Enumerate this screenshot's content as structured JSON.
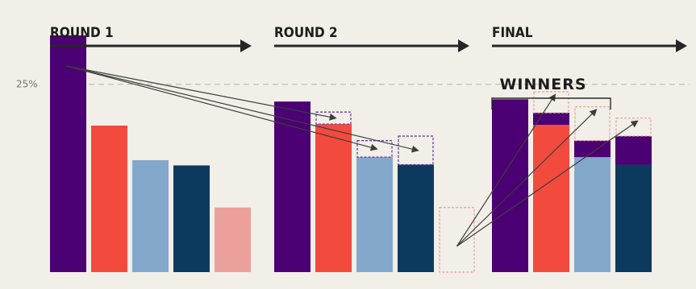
{
  "chart_data": {
    "type": "bar",
    "title": "",
    "stages": [
      {
        "label": "ROUND 1",
        "bars": [
          {
            "color_key": "purple",
            "value": 31.5
          },
          {
            "color_key": "red",
            "value": 19.5
          },
          {
            "color_key": "lightblue",
            "value": 14.9
          },
          {
            "color_key": "navy",
            "value": 14.2
          },
          {
            "color_key": "pink",
            "value": 8.6
          }
        ]
      },
      {
        "label": "ROUND 2",
        "bars": [
          {
            "color_key": "purple",
            "value": 22.7,
            "added": 0
          },
          {
            "color_key": "red",
            "value": 19.7,
            "added": 1.6
          },
          {
            "color_key": "lightblue",
            "value": 15.3,
            "added": 2.2
          },
          {
            "color_key": "navy",
            "value": 14.3,
            "added": 3.8
          },
          {
            "color_key": "pink",
            "value": 0,
            "eliminated_value": 8.6
          }
        ]
      },
      {
        "label": "FINAL",
        "bars": [
          {
            "color_key": "purple",
            "value": 23.0
          },
          {
            "color_key": "red",
            "value": 19.6,
            "added": 1.6,
            "slot": 24.0
          },
          {
            "color_key": "lightblue",
            "value": 15.3,
            "added": 2.2,
            "slot": 22.0
          },
          {
            "color_key": "navy",
            "value": 14.3,
            "added": 3.8,
            "slot": 20.5
          }
        ]
      }
    ],
    "reference_line": {
      "value": 25,
      "label": "25%"
    },
    "highlight_label": "WINNERS",
    "highlight_bars": [
      0,
      1,
      2
    ],
    "transfers": [
      {
        "from": [
          0,
          0
        ],
        "to": [
          1,
          1
        ]
      },
      {
        "from": [
          0,
          0
        ],
        "to": [
          1,
          2
        ]
      },
      {
        "from": [
          0,
          0
        ],
        "to": [
          1,
          3
        ]
      },
      {
        "from": [
          1,
          4
        ],
        "to": [
          2,
          1
        ]
      },
      {
        "from": [
          1,
          4
        ],
        "to": [
          2,
          2
        ]
      },
      {
        "from": [
          1,
          4
        ],
        "to": [
          2,
          3
        ]
      }
    ],
    "colors": {
      "purple": "#4b0073",
      "red": "#f24b3e",
      "lightblue": "#84a8cc",
      "navy": "#0c3a5e",
      "pink": "#eca09b",
      "dash_purple": "#6c3aa8",
      "dash_pink": "#e89f99",
      "arrow": "#3d3d3d",
      "refline": "#c9c4ba",
      "background": "#f2efe8"
    },
    "ylim": [
      0,
      33
    ]
  }
}
